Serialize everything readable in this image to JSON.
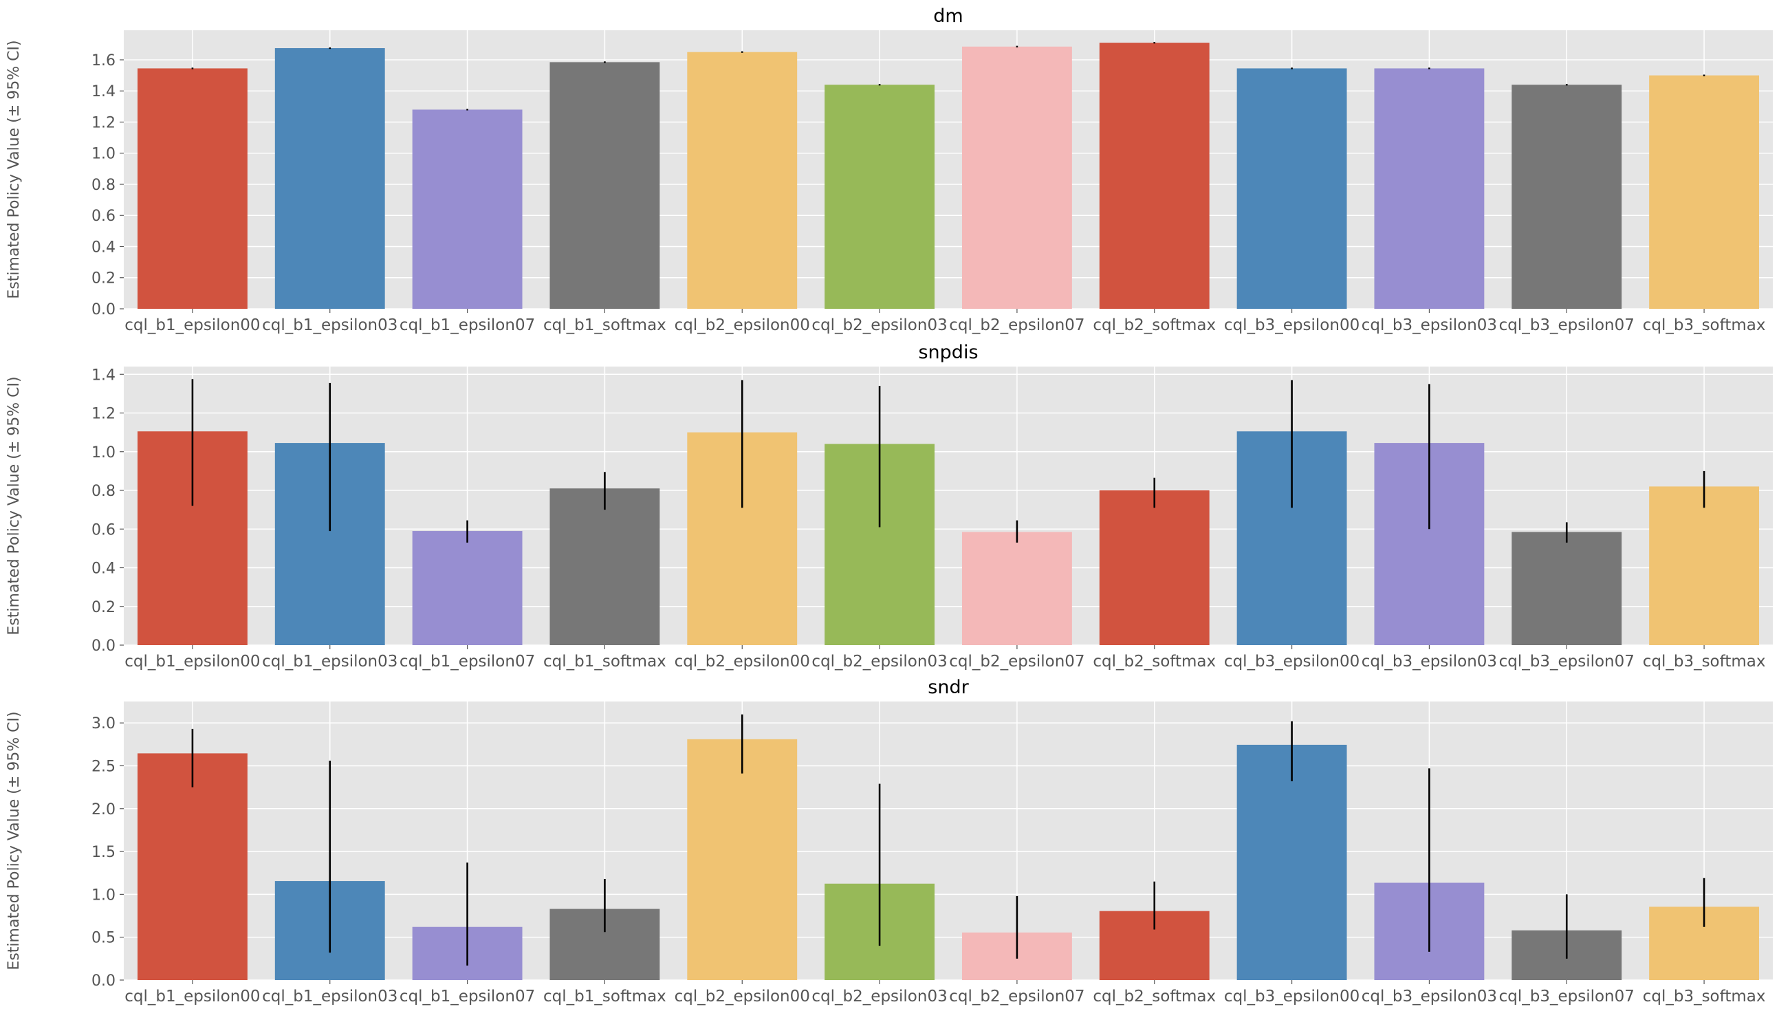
{
  "figure": {
    "bg": "#ffffff",
    "axes_bg": "#e5e5e5",
    "grid_color": "#ffffff",
    "errbar_color": "#000000"
  },
  "palette": [
    "#d1533f",
    "#4d87b8",
    "#978ed1",
    "#777777",
    "#f0c372",
    "#97b958",
    "#f4b8b8"
  ],
  "chart_data": [
    {
      "type": "bar",
      "title": "dm",
      "ylabel": "Estimated Policy Value (± 95% CI)",
      "categories": [
        "cql_b1_epsilon00",
        "cql_b1_epsilon03",
        "cql_b1_epsilon07",
        "cql_b1_softmax",
        "cql_b2_epsilon00",
        "cql_b2_epsilon03",
        "cql_b2_epsilon07",
        "cql_b2_softmax",
        "cql_b3_epsilon00",
        "cql_b3_epsilon03",
        "cql_b3_epsilon07",
        "cql_b3_softmax"
      ],
      "values": [
        1.545,
        1.675,
        1.28,
        1.585,
        1.65,
        1.44,
        1.685,
        1.71,
        1.545,
        1.545,
        1.44,
        1.5
      ],
      "ci_low": [
        1.54,
        1.67,
        1.275,
        1.58,
        1.645,
        1.435,
        1.68,
        1.705,
        1.54,
        1.54,
        1.435,
        1.495
      ],
      "ci_high": [
        1.55,
        1.68,
        1.285,
        1.59,
        1.655,
        1.445,
        1.69,
        1.715,
        1.55,
        1.55,
        1.445,
        1.505
      ],
      "ylim": [
        0,
        1.79
      ],
      "yticks": [
        "0.0",
        "0.2",
        "0.4",
        "0.6",
        "0.8",
        "1.0",
        "1.2",
        "1.4",
        "1.6"
      ],
      "grid": true
    },
    {
      "type": "bar",
      "title": "snpdis",
      "ylabel": "Estimated Policy Value (± 95% CI)",
      "categories": [
        "cql_b1_epsilon00",
        "cql_b1_epsilon03",
        "cql_b1_epsilon07",
        "cql_b1_softmax",
        "cql_b2_epsilon00",
        "cql_b2_epsilon03",
        "cql_b2_epsilon07",
        "cql_b2_softmax",
        "cql_b3_epsilon00",
        "cql_b3_epsilon03",
        "cql_b3_epsilon07",
        "cql_b3_softmax"
      ],
      "values": [
        1.105,
        1.045,
        0.59,
        0.81,
        1.1,
        1.04,
        0.585,
        0.8,
        1.105,
        1.045,
        0.585,
        0.82
      ],
      "ci_low": [
        0.72,
        0.59,
        0.53,
        0.7,
        0.71,
        0.61,
        0.53,
        0.71,
        0.71,
        0.6,
        0.53,
        0.71
      ],
      "ci_high": [
        1.375,
        1.355,
        0.645,
        0.895,
        1.37,
        1.34,
        0.645,
        0.865,
        1.37,
        1.35,
        0.635,
        0.9
      ],
      "ylim": [
        0,
        1.44
      ],
      "yticks": [
        "0.0",
        "0.2",
        "0.4",
        "0.6",
        "0.8",
        "1.0",
        "1.2",
        "1.4"
      ],
      "grid": true
    },
    {
      "type": "bar",
      "title": "sndr",
      "ylabel": "Estimated Policy Value (± 95% CI)",
      "categories": [
        "cql_b1_epsilon00",
        "cql_b1_epsilon03",
        "cql_b1_epsilon07",
        "cql_b1_softmax",
        "cql_b2_epsilon00",
        "cql_b2_epsilon03",
        "cql_b2_epsilon07",
        "cql_b2_softmax",
        "cql_b3_epsilon00",
        "cql_b3_epsilon03",
        "cql_b3_epsilon07",
        "cql_b3_softmax"
      ],
      "values": [
        2.645,
        1.155,
        0.62,
        0.83,
        2.81,
        1.125,
        0.555,
        0.805,
        2.745,
        1.135,
        0.58,
        0.855
      ],
      "ci_low": [
        2.25,
        0.32,
        0.17,
        0.56,
        2.41,
        0.4,
        0.25,
        0.59,
        2.32,
        0.33,
        0.25,
        0.62
      ],
      "ci_high": [
        2.93,
        2.56,
        1.37,
        1.18,
        3.1,
        2.29,
        0.98,
        1.15,
        3.02,
        2.47,
        1.0,
        1.19
      ],
      "ylim": [
        0,
        3.25
      ],
      "yticks": [
        "0.0",
        "0.5",
        "1.0",
        "1.5",
        "2.0",
        "2.5",
        "3.0"
      ],
      "grid": true
    }
  ]
}
